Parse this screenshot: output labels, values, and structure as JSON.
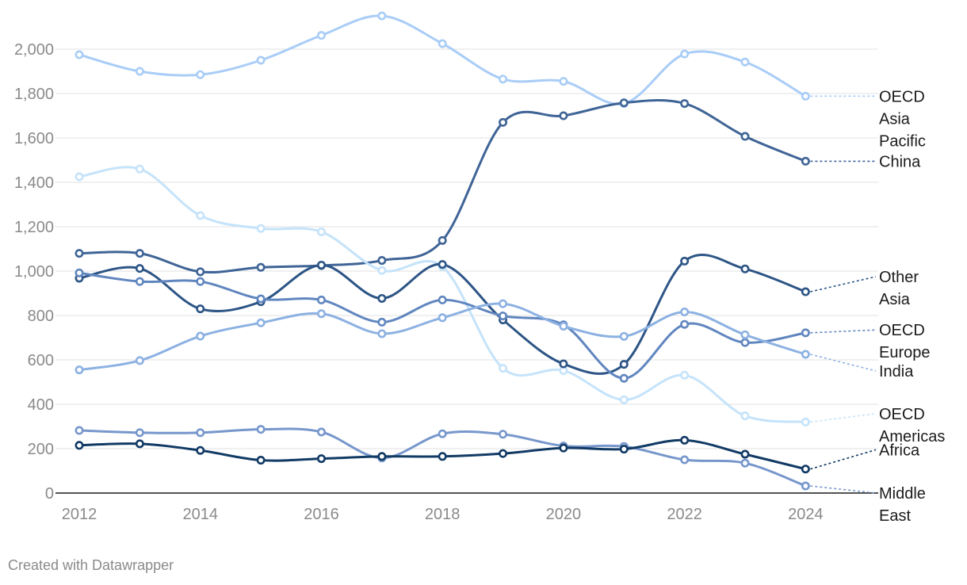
{
  "footer": {
    "credit": "Created with Datawrapper"
  },
  "chart_data": {
    "type": "line",
    "x": [
      2012,
      2013,
      2014,
      2015,
      2016,
      2017,
      2018,
      2019,
      2020,
      2021,
      2022,
      2023,
      2024
    ],
    "xticks": [
      "2012",
      "2014",
      "2016",
      "2018",
      "2020",
      "2022",
      "2024"
    ],
    "yticks": [
      "0",
      "200",
      "400",
      "600",
      "800",
      "1,000",
      "1,200",
      "1,400",
      "1,600",
      "1,800",
      "2,000"
    ],
    "ylim": [
      0,
      2150
    ],
    "xlim": [
      2012,
      2025.2
    ],
    "grid": true,
    "legend": "direct labels at right",
    "series": [
      {
        "name": "OECD Asia Pacific",
        "label_lines": [
          "OECD",
          "Asia",
          "Pacific"
        ],
        "color": "#a9cdf7",
        "values": [
          1975,
          1900,
          1885,
          1950,
          2062,
          2150,
          2025,
          1865,
          1855,
          1755,
          1978,
          1942,
          1788
        ]
      },
      {
        "name": "China",
        "label_lines": [
          "China"
        ],
        "color": "#3f6496",
        "values": [
          1080,
          1080,
          997,
          1017,
          1025,
          1048,
          1138,
          1670,
          1700,
          1758,
          1755,
          1607,
          1495
        ]
      },
      {
        "name": "OECD Americas",
        "label_lines": [
          "OECD",
          "Americas"
        ],
        "color": "#c5e3fa",
        "values": [
          1425,
          1460,
          1250,
          1192,
          1177,
          1003,
          1020,
          562,
          552,
          420,
          531,
          348,
          320
        ]
      },
      {
        "name": "Other Asia",
        "label_lines": [
          "Other",
          "Asia"
        ],
        "color": "#2d5586",
        "values": [
          968,
          1012,
          830,
          862,
          1027,
          877,
          1030,
          780,
          582,
          580,
          1045,
          1010,
          907
        ]
      },
      {
        "name": "OECD Europe",
        "label_lines": [
          "OECD",
          "Europe"
        ],
        "color": "#6086bf",
        "values": [
          992,
          953,
          953,
          875,
          870,
          770,
          870,
          798,
          758,
          517,
          760,
          678,
          722
        ]
      },
      {
        "name": "India",
        "label_lines": [
          "India"
        ],
        "color": "#8cb1e2",
        "values": [
          555,
          597,
          707,
          767,
          808,
          718,
          790,
          853,
          752,
          706,
          816,
          713,
          625
        ]
      },
      {
        "name": "Middle East",
        "label_lines": [
          "Middle",
          "East"
        ],
        "color": "#7797cc",
        "values": [
          282,
          272,
          272,
          287,
          275,
          158,
          267,
          265,
          212,
          210,
          150,
          135,
          32
        ]
      },
      {
        "name": "Africa",
        "label_lines": [
          "Africa"
        ],
        "color": "#113a65",
        "values": [
          215,
          222,
          192,
          148,
          155,
          165,
          165,
          178,
          203,
          198,
          238,
          175,
          108
        ]
      }
    ]
  }
}
